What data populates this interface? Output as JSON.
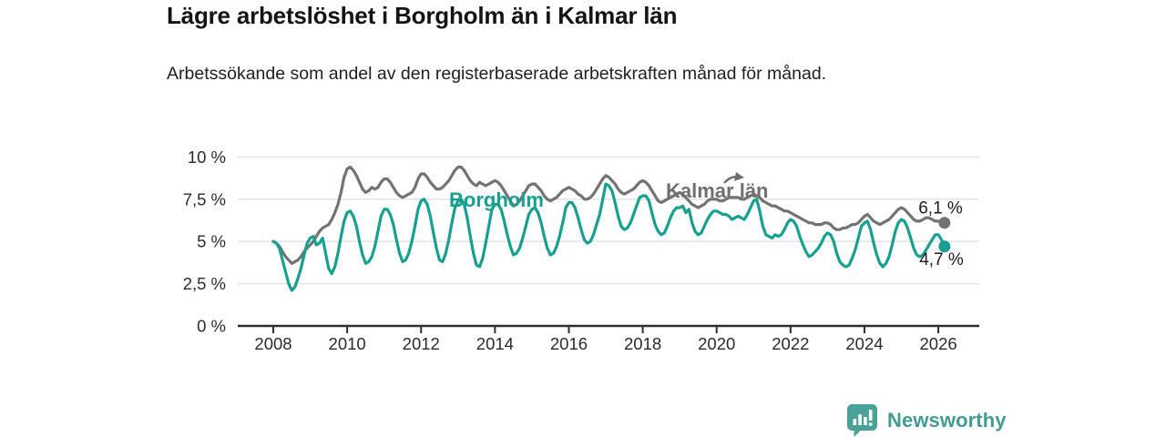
{
  "header": {
    "title": "Lägre arbetslöshet i Borgholm än i Kalmar län",
    "subtitle": "Arbetssökande som andel av den registerbaserade arbetskraften månad för månad."
  },
  "chart_data": {
    "type": "line",
    "title": "Lägre arbetslöshet i Borgholm än i Kalmar län",
    "subtitle": "Arbetssökande som andel av den registerbaserade arbetskraften månad för månad.",
    "frequency": "monthly",
    "x_start": "2008-01",
    "x_end": "2026-03",
    "ylim": [
      0,
      10
    ],
    "grid": "horizontal",
    "y_axis": {
      "ticks": [
        {
          "value": 0,
          "label": "0 %"
        },
        {
          "value": 2.5,
          "label": "2,5 %"
        },
        {
          "value": 5,
          "label": "5 %"
        },
        {
          "value": 7.5,
          "label": "7,5 %"
        },
        {
          "value": 10,
          "label": "10 %"
        }
      ]
    },
    "x_axis": {
      "ticks": [
        2008,
        2010,
        2012,
        2014,
        2016,
        2018,
        2020,
        2022,
        2024,
        2026
      ]
    },
    "series": [
      {
        "name": "Kalmar län",
        "color": "#737373",
        "values": [
          5.0,
          4.9,
          4.7,
          4.4,
          4.1,
          3.9,
          3.7,
          3.8,
          3.9,
          4.1,
          4.4,
          4.6,
          4.8,
          5.0,
          5.3,
          5.6,
          5.8,
          5.9,
          6.0,
          6.3,
          6.7,
          7.2,
          7.9,
          8.8,
          9.3,
          9.4,
          9.2,
          8.9,
          8.5,
          8.1,
          7.9,
          8.0,
          8.2,
          8.1,
          8.2,
          8.5,
          8.7,
          8.7,
          8.5,
          8.2,
          7.9,
          7.7,
          7.6,
          7.7,
          7.8,
          7.9,
          8.2,
          8.7,
          9.0,
          9.0,
          8.8,
          8.5,
          8.3,
          8.1,
          8.1,
          8.2,
          8.4,
          8.6,
          8.9,
          9.2,
          9.4,
          9.4,
          9.2,
          8.9,
          8.6,
          8.4,
          8.3,
          8.5,
          8.4,
          8.3,
          8.4,
          8.5,
          8.6,
          8.5,
          8.3,
          8.0,
          7.7,
          7.4,
          7.1,
          7.2,
          7.4,
          7.7,
          8.0,
          8.3,
          8.4,
          8.4,
          8.2,
          8.0,
          7.7,
          7.5,
          7.4,
          7.5,
          7.6,
          7.8,
          8.0,
          8.1,
          8.2,
          8.1,
          8.0,
          7.8,
          7.7,
          7.5,
          7.5,
          7.6,
          7.8,
          8.1,
          8.4,
          8.7,
          8.9,
          8.8,
          8.6,
          8.4,
          8.1,
          7.9,
          7.8,
          7.9,
          8.0,
          8.1,
          8.3,
          8.5,
          8.6,
          8.5,
          8.3,
          8.0,
          7.7,
          7.4,
          7.3,
          7.4,
          7.5,
          7.6,
          7.7,
          7.8,
          7.9,
          7.8,
          7.6,
          7.4,
          7.2,
          7.1,
          7.0,
          7.1,
          7.2,
          7.4,
          7.5,
          7.5,
          7.5,
          7.4,
          7.4,
          7.5,
          7.6,
          7.6,
          7.6,
          7.6,
          7.5,
          7.5,
          7.6,
          7.7,
          7.8,
          7.7,
          7.6,
          7.4,
          7.3,
          7.2,
          7.1,
          7.1,
          7.0,
          6.9,
          6.8,
          6.8,
          6.7,
          6.6,
          6.5,
          6.4,
          6.3,
          6.2,
          6.1,
          6.1,
          6.0,
          6.0,
          6.0,
          6.1,
          6.1,
          6.0,
          5.8,
          5.7,
          5.7,
          5.8,
          5.8,
          5.9,
          6.0,
          6.0,
          6.1,
          6.3,
          6.5,
          6.6,
          6.4,
          6.2,
          6.1,
          6.0,
          6.1,
          6.2,
          6.3,
          6.5,
          6.7,
          6.9,
          7.0,
          6.9,
          6.7,
          6.5,
          6.3,
          6.2,
          6.2,
          6.3,
          6.4,
          6.4,
          6.3,
          6.2,
          6.2,
          6.1,
          6.1
        ]
      },
      {
        "name": "Borgholm",
        "color": "#17a091",
        "values": [
          5.0,
          4.9,
          4.6,
          3.9,
          3.2,
          2.5,
          2.1,
          2.3,
          2.8,
          3.4,
          4.2,
          4.9,
          5.2,
          5.3,
          4.8,
          4.9,
          5.2,
          4.3,
          3.4,
          3.1,
          3.5,
          4.3,
          5.3,
          6.2,
          6.7,
          6.8,
          6.5,
          5.9,
          5.0,
          4.2,
          3.7,
          3.8,
          4.1,
          4.7,
          5.6,
          6.5,
          6.9,
          6.9,
          6.6,
          6.0,
          5.1,
          4.3,
          3.8,
          3.9,
          4.3,
          5.0,
          5.9,
          6.9,
          7.4,
          7.5,
          7.2,
          6.5,
          5.5,
          4.6,
          3.9,
          3.8,
          4.3,
          5.1,
          6.1,
          7.0,
          7.4,
          7.5,
          7.2,
          6.4,
          5.3,
          4.3,
          3.6,
          3.5,
          4.0,
          4.9,
          5.9,
          6.9,
          7.2,
          7.2,
          6.9,
          6.2,
          5.4,
          4.7,
          4.2,
          4.3,
          4.6,
          5.2,
          5.9,
          6.6,
          6.9,
          7.0,
          6.7,
          6.1,
          5.3,
          4.6,
          4.2,
          4.3,
          4.7,
          5.3,
          6.1,
          7.0,
          7.3,
          7.3,
          7.0,
          6.4,
          5.7,
          5.1,
          4.9,
          5.0,
          5.4,
          6.0,
          6.6,
          7.5,
          8.4,
          8.3,
          8.0,
          7.3,
          6.5,
          5.9,
          5.7,
          5.8,
          6.1,
          6.6,
          7.1,
          7.6,
          7.7,
          7.7,
          7.4,
          6.7,
          6.0,
          5.6,
          5.4,
          5.5,
          5.9,
          6.4,
          6.8,
          7.0,
          7.0,
          7.1,
          6.7,
          6.9,
          6.1,
          5.6,
          5.4,
          5.5,
          5.9,
          6.3,
          6.6,
          6.8,
          6.8,
          6.7,
          6.6,
          6.6,
          6.5,
          6.3,
          6.4,
          6.5,
          6.4,
          6.3,
          6.6,
          7.0,
          7.4,
          7.5,
          6.8,
          5.9,
          5.4,
          5.3,
          5.2,
          5.4,
          5.3,
          5.4,
          5.7,
          6.1,
          6.3,
          6.2,
          5.9,
          5.3,
          4.8,
          4.4,
          4.1,
          4.2,
          4.4,
          4.6,
          4.9,
          5.3,
          5.5,
          5.4,
          5.0,
          4.3,
          3.8,
          3.6,
          3.5,
          3.6,
          4.0,
          4.5,
          5.2,
          5.9,
          6.1,
          6.2,
          5.7,
          4.9,
          4.2,
          3.7,
          3.5,
          3.7,
          4.1,
          4.8,
          5.6,
          6.1,
          6.3,
          6.2,
          5.8,
          5.2,
          4.6,
          4.2,
          4.1,
          4.2,
          4.5,
          4.8,
          5.1,
          5.4,
          5.4,
          5.1,
          4.7
        ]
      }
    ],
    "annotations": {
      "series_labels": [
        {
          "series": "Borgholm",
          "text": "Borgholm"
        },
        {
          "series": "Kalmar län",
          "text": "Kalmar län"
        }
      ],
      "end_labels": [
        {
          "series": "Kalmar län",
          "text": "6,1 %"
        },
        {
          "series": "Borgholm",
          "text": "4,7 %"
        }
      ]
    }
  },
  "footer": {
    "brand": "Newsworthy"
  }
}
